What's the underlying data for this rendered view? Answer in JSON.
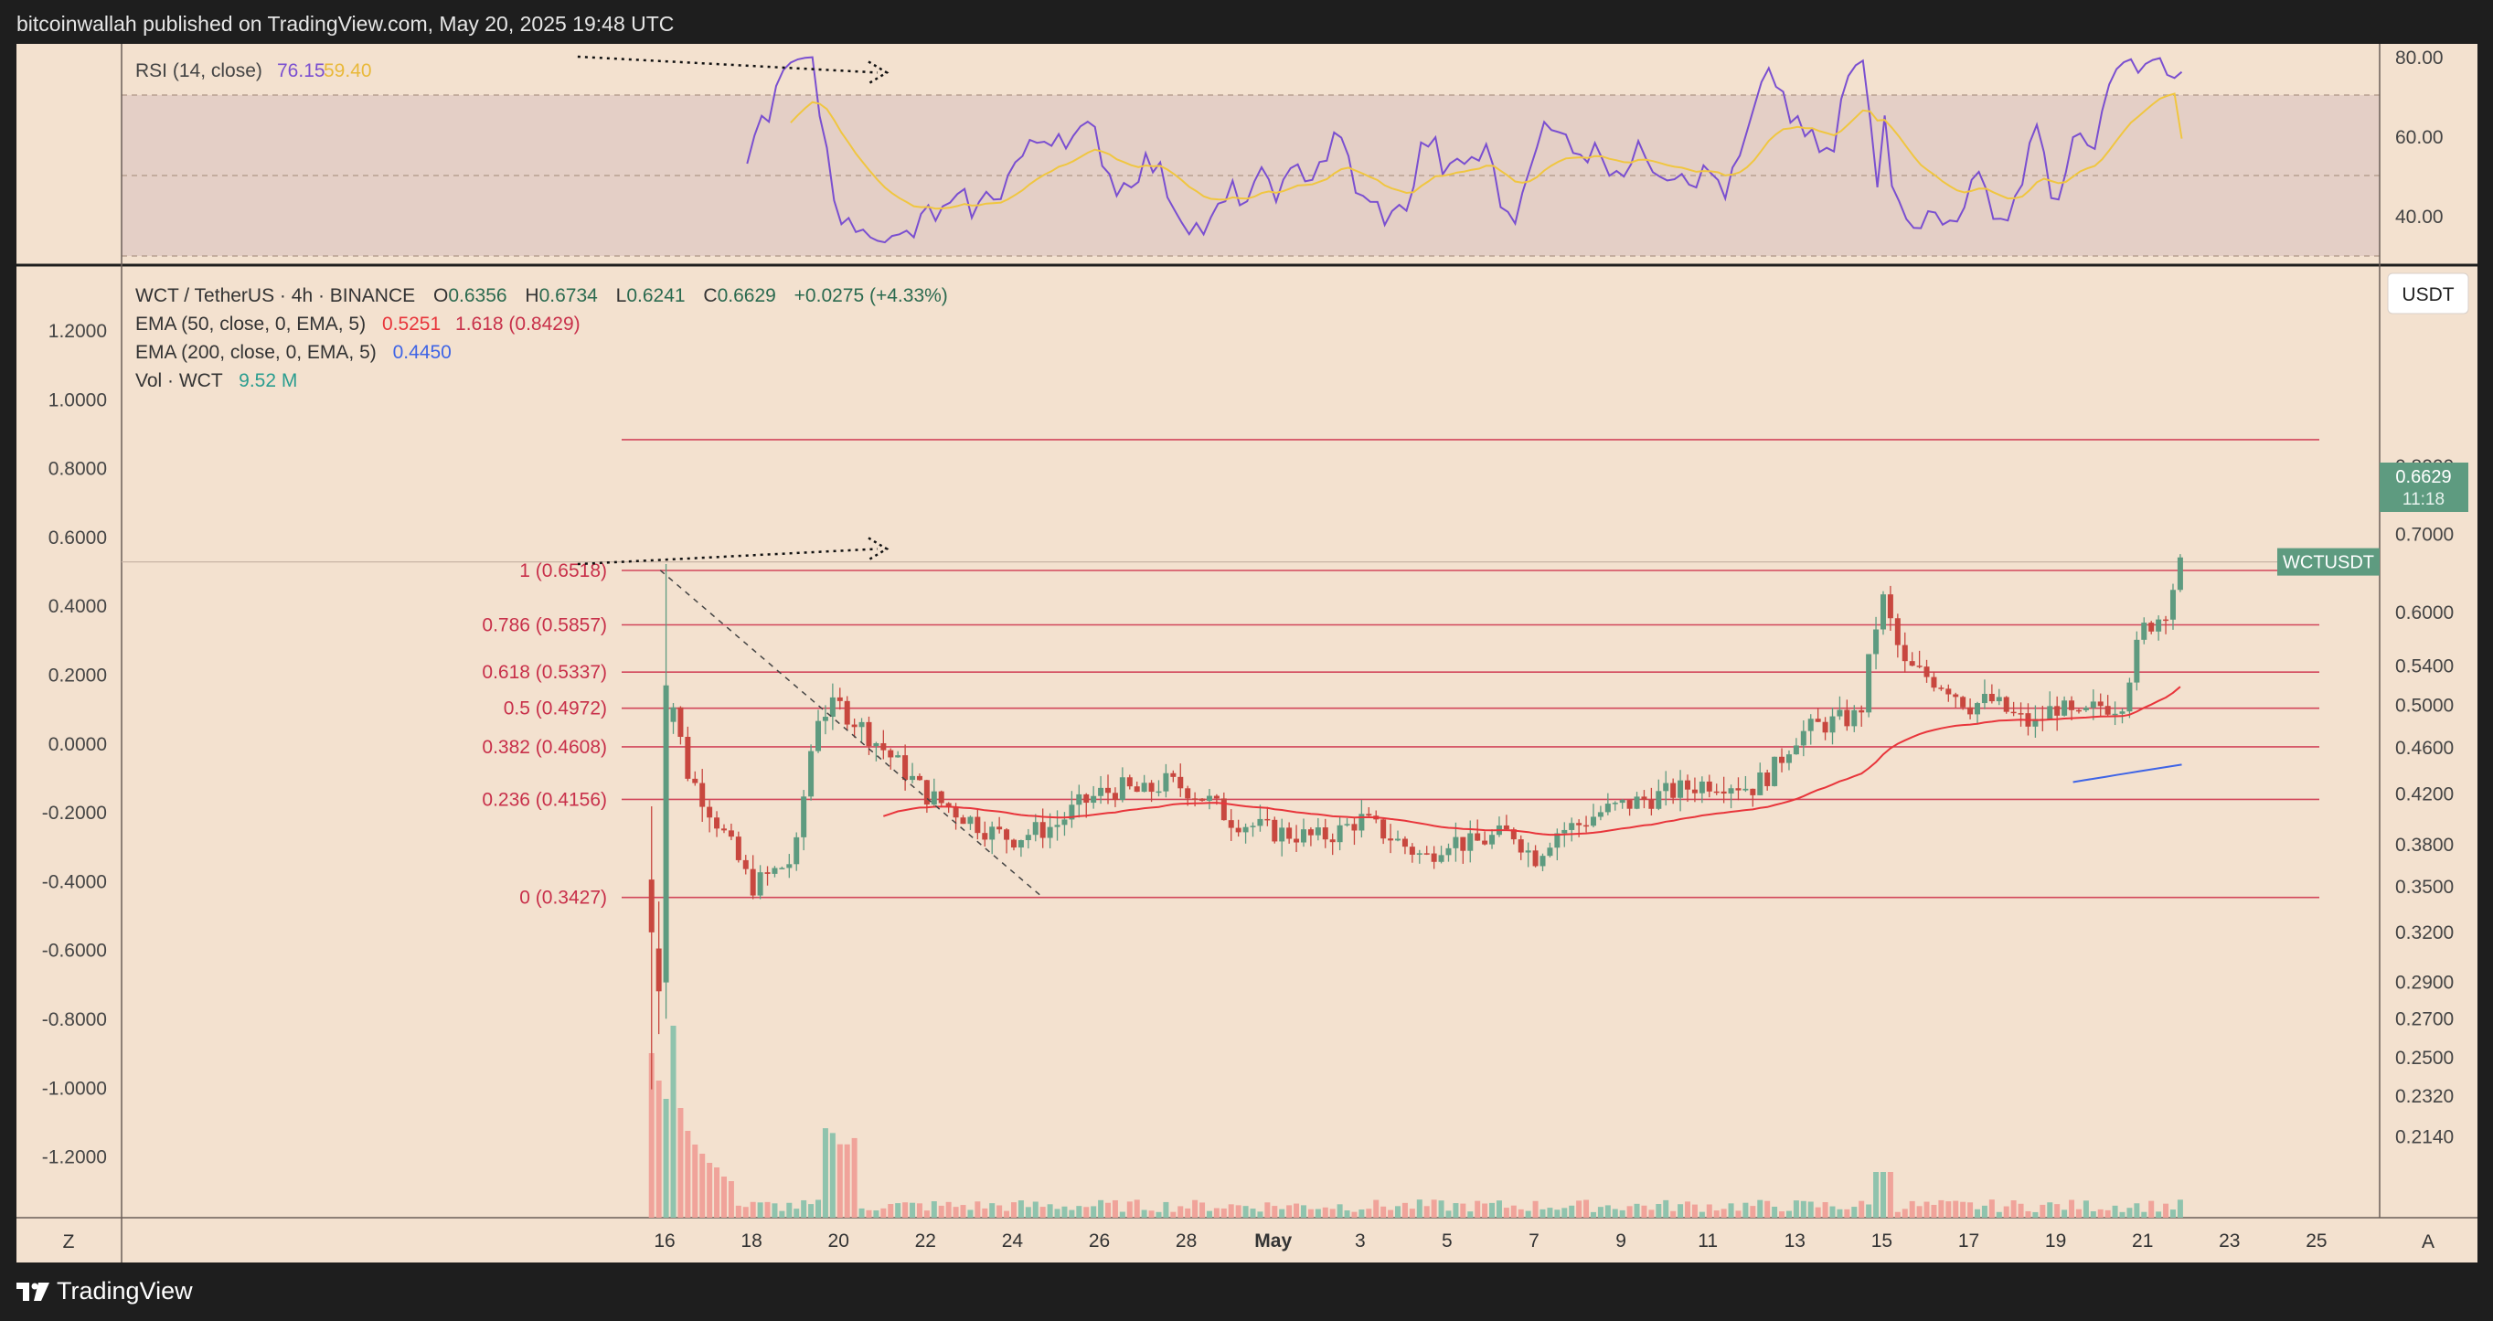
{
  "header": {
    "published": "bitcoinwallah published on TradingView.com, May 20, 2025 19:48 UTC"
  },
  "footer": {
    "brand": "TradingView"
  },
  "colors": {
    "background": "#f3e1cf",
    "up": "#5e9b80",
    "down": "#c8473f",
    "fib": "#d2475b",
    "ema50": "#e8353b",
    "ema200": "#3e64e6",
    "rsi": "#7a4fd0",
    "rsi_ma": "#f0c640",
    "price_badge": "#5e9b80"
  },
  "legend": {
    "symbol_line": "WCT / TetherUS · 4h · BINANCE",
    "o_label": "O",
    "o_value": "0.6356",
    "h_label": "H",
    "h_value": "0.6734",
    "l_label": "L",
    "l_value": "0.6241",
    "c_label": "C",
    "c_value": "0.6629",
    "change": "+0.0275 (+4.33%)",
    "ema50_label": "EMA (50, close, 0, EMA, 5)",
    "ema50_value": "0.5251",
    "ema50_extra": "1.618 (0.8429)",
    "ema200_label": "EMA (200, close, 0, EMA, 5)",
    "ema200_value": "0.4450",
    "vol_label": "Vol · WCT",
    "vol_value": "9.52 M"
  },
  "rsi_legend": {
    "label": "RSI (14, close)",
    "value1": "76.15",
    "value2": "59.40"
  },
  "currency_button": "USDT",
  "price_badge": {
    "symbol": "WCTUSDT",
    "price": "0.6629",
    "countdown": "11:18"
  },
  "scale_buttons": {
    "left": "Z",
    "right": "A"
  },
  "chart_data": {
    "type": "candlestick",
    "symbol": "WCT / TetherUS",
    "interval": "4h",
    "exchange": "BINANCE",
    "y_scale": "log",
    "right_axis_ticks": [
      "0.8000",
      "0.7000",
      "0.6000",
      "0.5400",
      "0.5000",
      "0.4600",
      "0.4200",
      "0.3800",
      "0.3500",
      "0.3200",
      "0.2900",
      "0.2700",
      "0.2500",
      "0.2320",
      "0.2140"
    ],
    "left_axis_ticks": [
      "1.2000",
      "1.0000",
      "0.8000",
      "0.6000",
      "0.4000",
      "0.2000",
      "0.0000",
      "-0.2000",
      "-0.4000",
      "-0.6000",
      "-0.8000",
      "-1.0000",
      "-1.2000"
    ],
    "x_ticks": [
      "16",
      "18",
      "20",
      "22",
      "24",
      "26",
      "28",
      "May",
      "3",
      "5",
      "7",
      "9",
      "11",
      "13",
      "15",
      "17",
      "19",
      "21",
      "23",
      "25"
    ],
    "fib_levels": [
      {
        "label": "1 (0.6518)",
        "value": 0.6518
      },
      {
        "label": "0.786 (0.5857)",
        "value": 0.5857
      },
      {
        "label": "0.618 (0.5337)",
        "value": 0.5337
      },
      {
        "label": "0.5 (0.4972)",
        "value": 0.4972
      },
      {
        "label": "0.382 (0.4608)",
        "value": 0.4608
      },
      {
        "label": "0.236 (0.4156)",
        "value": 0.4156
      },
      {
        "label": "0 (0.3427)",
        "value": 0.3427
      }
    ],
    "ext_level": {
      "label": "1.618 (0.8429)",
      "value": 0.8429
    },
    "trendline": [
      {
        "x": 15.9,
        "y": 0.652
      },
      {
        "x": 24.7,
        "y": 0.3427
      }
    ],
    "swing_high_line": [
      {
        "x": 14.0,
        "y": 0.66
      },
      {
        "x": 20.9,
        "y": 0.68
      }
    ],
    "rsi_divergence_line": [
      {
        "x": 14.0,
        "y": 80
      },
      {
        "x": 20.9,
        "y": 76
      }
    ],
    "rsi_axis_ticks": [
      "80.00",
      "60.00",
      "40.00"
    ],
    "rsi_bands": {
      "upper": 70,
      "middle": 50,
      "lower": 30
    },
    "rsi_last": 76.15,
    "rsi_ma_last": 59.4,
    "last_price": 0.6629,
    "ema50_last": 0.5251,
    "ema200_last": 0.445,
    "volume_last": "9.52 M",
    "daily_closes": [
      {
        "x": 15.7,
        "y": 0.36
      },
      {
        "x": 16.1,
        "y": 0.52
      },
      {
        "x": 16.5,
        "y": 0.44
      },
      {
        "x": 17.0,
        "y": 0.41
      },
      {
        "x": 17.5,
        "y": 0.38
      },
      {
        "x": 18.0,
        "y": 0.35
      },
      {
        "x": 18.5,
        "y": 0.36
      },
      {
        "x": 19.0,
        "y": 0.37
      },
      {
        "x": 19.5,
        "y": 0.49
      },
      {
        "x": 20.0,
        "y": 0.5
      },
      {
        "x": 20.5,
        "y": 0.48
      },
      {
        "x": 21.0,
        "y": 0.46
      },
      {
        "x": 21.5,
        "y": 0.44
      },
      {
        "x": 22.0,
        "y": 0.42
      },
      {
        "x": 22.5,
        "y": 0.41
      },
      {
        "x": 23.0,
        "y": 0.4
      },
      {
        "x": 23.5,
        "y": 0.39
      },
      {
        "x": 24.0,
        "y": 0.385
      },
      {
        "x": 24.5,
        "y": 0.39
      },
      {
        "x": 25.0,
        "y": 0.395
      },
      {
        "x": 25.5,
        "y": 0.41
      },
      {
        "x": 26.0,
        "y": 0.42
      },
      {
        "x": 26.5,
        "y": 0.425
      },
      {
        "x": 27.0,
        "y": 0.42
      },
      {
        "x": 27.5,
        "y": 0.43
      },
      {
        "x": 28.0,
        "y": 0.425
      },
      {
        "x": 28.5,
        "y": 0.415
      },
      {
        "x": 29.0,
        "y": 0.4
      },
      {
        "x": 29.5,
        "y": 0.395
      },
      {
        "x": 30.0,
        "y": 0.39
      },
      {
        "x": 30.5,
        "y": 0.388
      },
      {
        "x": 31.0,
        "y": 0.385
      },
      {
        "x": 31.5,
        "y": 0.39
      },
      {
        "x": 32.0,
        "y": 0.4
      },
      {
        "x": 32.5,
        "y": 0.39
      },
      {
        "x": 33.0,
        "y": 0.38
      },
      {
        "x": 33.5,
        "y": 0.37
      },
      {
        "x": 34.0,
        "y": 0.385
      },
      {
        "x": 34.5,
        "y": 0.38
      },
      {
        "x": 35.0,
        "y": 0.385
      },
      {
        "x": 35.5,
        "y": 0.39
      },
      {
        "x": 36.0,
        "y": 0.37
      },
      {
        "x": 36.5,
        "y": 0.39
      },
      {
        "x": 37.0,
        "y": 0.395
      },
      {
        "x": 37.5,
        "y": 0.405
      },
      {
        "x": 38.0,
        "y": 0.41
      },
      {
        "x": 38.5,
        "y": 0.415
      },
      {
        "x": 39.0,
        "y": 0.42
      },
      {
        "x": 39.5,
        "y": 0.425
      },
      {
        "x": 40.0,
        "y": 0.43
      },
      {
        "x": 40.5,
        "y": 0.43
      },
      {
        "x": 41.0,
        "y": 0.425
      },
      {
        "x": 41.5,
        "y": 0.44
      },
      {
        "x": 42.0,
        "y": 0.47
      },
      {
        "x": 42.5,
        "y": 0.48
      },
      {
        "x": 43.0,
        "y": 0.485
      },
      {
        "x": 43.5,
        "y": 0.49
      },
      {
        "x": 44.0,
        "y": 0.62
      },
      {
        "x": 44.5,
        "y": 0.54
      },
      {
        "x": 45.0,
        "y": 0.53
      },
      {
        "x": 45.5,
        "y": 0.52
      },
      {
        "x": 46.0,
        "y": 0.5
      },
      {
        "x": 46.5,
        "y": 0.505
      },
      {
        "x": 47.0,
        "y": 0.49
      },
      {
        "x": 47.5,
        "y": 0.48
      },
      {
        "x": 48.0,
        "y": 0.5
      },
      {
        "x": 48.5,
        "y": 0.485
      },
      {
        "x": 49.0,
        "y": 0.5
      },
      {
        "x": 49.5,
        "y": 0.5
      },
      {
        "x": 50.0,
        "y": 0.58
      },
      {
        "x": 50.5,
        "y": 0.6
      },
      {
        "x": 50.9,
        "y": 0.6629
      }
    ]
  }
}
